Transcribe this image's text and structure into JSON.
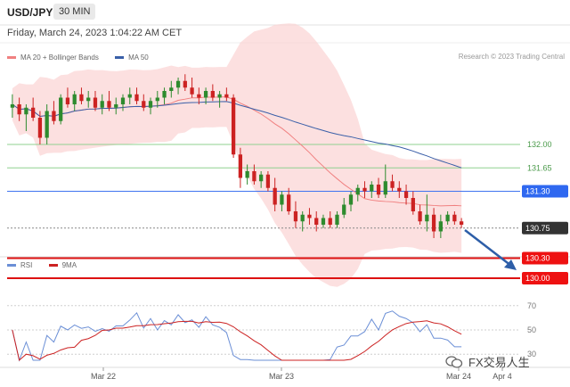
{
  "header": {
    "symbol": "USD/JPY",
    "timeframe": "30 MIN"
  },
  "datetime": "Friday, March 24, 2023 1:04:22 AM CET",
  "legend": [
    {
      "label": "MA 20 + Bollinger Bands",
      "color": "#f08080"
    },
    {
      "label": "MA 50",
      "color": "#3a5fa8"
    }
  ],
  "research": "Research © 2023 Trading Central",
  "rsi_legend": [
    {
      "label": "RSI",
      "color": "#6b8fd6"
    },
    {
      "label": "9MA",
      "color": "#cc2222"
    }
  ],
  "price_levels": [
    {
      "value": 132.0,
      "label": "132.00",
      "style": "green-line"
    },
    {
      "value": 131.65,
      "label": "131.65",
      "style": "green-line"
    },
    {
      "value": 131.3,
      "label": "131.30",
      "style": "blue-tag"
    },
    {
      "value": 130.75,
      "label": "130.75",
      "style": "dark-tag"
    },
    {
      "value": 130.3,
      "label": "130.30",
      "style": "red-tag"
    },
    {
      "value": 130.0,
      "label": "130.00",
      "style": "red-tag"
    }
  ],
  "rsi_levels": [
    "70",
    "50",
    "30"
  ],
  "x_axis_labels": [
    "Mar 22",
    "Mar 23",
    "Mar 24",
    "Apr 4"
  ],
  "watermark": "FX交易人生",
  "colors": {
    "up": "#2e8b2e",
    "down": "#cc2222",
    "ma20": "#f08080",
    "ma50": "#3a5fa8",
    "band": "#fbd3d3"
  },
  "chart_data": {
    "type": "candlestick",
    "ylim": [
      130.0,
      133.2
    ],
    "candles_ohlc": [
      [
        132.55,
        132.75,
        132.4,
        132.6
      ],
      [
        132.6,
        132.7,
        132.35,
        132.45
      ],
      [
        132.45,
        132.6,
        132.2,
        132.55
      ],
      [
        132.55,
        132.7,
        132.35,
        132.4
      ],
      [
        132.4,
        132.5,
        132.0,
        132.1
      ],
      [
        132.1,
        132.6,
        132.0,
        132.5
      ],
      [
        132.5,
        132.65,
        132.3,
        132.35
      ],
      [
        132.35,
        132.75,
        132.3,
        132.7
      ],
      [
        132.7,
        132.85,
        132.55,
        132.6
      ],
      [
        132.6,
        132.8,
        132.5,
        132.75
      ],
      [
        132.75,
        132.85,
        132.6,
        132.65
      ],
      [
        132.65,
        132.8,
        132.55,
        132.7
      ],
      [
        132.7,
        132.8,
        132.5,
        132.55
      ],
      [
        132.55,
        132.75,
        132.45,
        132.65
      ],
      [
        132.65,
        132.8,
        132.5,
        132.55
      ],
      [
        132.55,
        132.7,
        132.45,
        132.6
      ],
      [
        132.6,
        132.75,
        132.5,
        132.7
      ],
      [
        132.7,
        132.85,
        132.6,
        132.75
      ],
      [
        132.75,
        132.85,
        132.6,
        132.65
      ],
      [
        132.65,
        132.75,
        132.5,
        132.55
      ],
      [
        132.55,
        132.7,
        132.45,
        132.65
      ],
      [
        132.65,
        132.8,
        132.55,
        132.7
      ],
      [
        132.7,
        132.85,
        132.6,
        132.8
      ],
      [
        132.8,
        132.95,
        132.7,
        132.85
      ],
      [
        132.85,
        133.0,
        132.75,
        132.95
      ],
      [
        132.95,
        133.05,
        132.8,
        132.85
      ],
      [
        132.85,
        133.0,
        132.7,
        132.75
      ],
      [
        132.75,
        132.85,
        132.6,
        132.7
      ],
      [
        132.7,
        132.85,
        132.6,
        132.8
      ],
      [
        132.8,
        132.9,
        132.65,
        132.7
      ],
      [
        132.7,
        132.8,
        132.55,
        132.75
      ],
      [
        132.75,
        132.85,
        132.65,
        132.7
      ],
      [
        132.7,
        132.75,
        131.8,
        131.85
      ],
      [
        131.85,
        131.95,
        131.35,
        131.5
      ],
      [
        131.5,
        131.7,
        131.4,
        131.6
      ],
      [
        131.6,
        131.7,
        131.4,
        131.45
      ],
      [
        131.45,
        131.6,
        131.35,
        131.55
      ],
      [
        131.55,
        131.6,
        131.3,
        131.35
      ],
      [
        131.35,
        131.5,
        131.0,
        131.1
      ],
      [
        131.1,
        131.3,
        131.0,
        131.25
      ],
      [
        131.25,
        131.35,
        130.95,
        131.0
      ],
      [
        131.0,
        131.15,
        130.75,
        130.85
      ],
      [
        130.85,
        131.0,
        130.7,
        130.95
      ],
      [
        130.95,
        131.05,
        130.8,
        130.9
      ],
      [
        130.9,
        131.0,
        130.7,
        130.8
      ],
      [
        130.8,
        130.95,
        130.75,
        130.9
      ],
      [
        130.9,
        131.0,
        130.75,
        130.8
      ],
      [
        130.8,
        131.0,
        130.75,
        130.95
      ],
      [
        130.95,
        131.2,
        130.9,
        131.1
      ],
      [
        131.1,
        131.3,
        131.0,
        131.25
      ],
      [
        131.25,
        131.4,
        131.15,
        131.35
      ],
      [
        131.35,
        131.45,
        131.2,
        131.3
      ],
      [
        131.3,
        131.45,
        131.2,
        131.4
      ],
      [
        131.4,
        131.5,
        131.2,
        131.25
      ],
      [
        131.25,
        131.7,
        131.2,
        131.45
      ],
      [
        131.45,
        131.55,
        131.3,
        131.35
      ],
      [
        131.35,
        131.45,
        131.2,
        131.3
      ],
      [
        131.3,
        131.4,
        131.1,
        131.2
      ],
      [
        131.2,
        131.3,
        130.95,
        131.0
      ],
      [
        131.0,
        131.1,
        130.8,
        130.85
      ],
      [
        130.85,
        131.25,
        130.7,
        130.95
      ],
      [
        130.95,
        131.05,
        130.6,
        130.7
      ],
      [
        130.7,
        130.95,
        130.6,
        130.85
      ],
      [
        130.85,
        131.0,
        130.8,
        130.95
      ],
      [
        130.95,
        131.0,
        130.8,
        130.85
      ],
      [
        130.85,
        130.9,
        130.75,
        130.8
      ]
    ],
    "rsi_ylim": [
      25,
      75
    ]
  }
}
